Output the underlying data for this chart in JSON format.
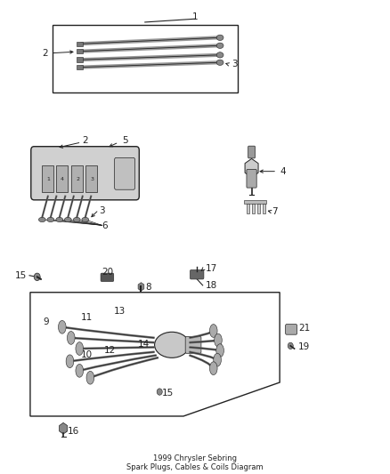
{
  "title": "1999 Chrysler Sebring\nSpark Plugs, Cables & Coils Diagram",
  "bg_color": "#ffffff",
  "fig_width": 4.38,
  "fig_height": 5.33,
  "dpi": 100,
  "line_color": "#222222",
  "label_fontsize": 7.5
}
